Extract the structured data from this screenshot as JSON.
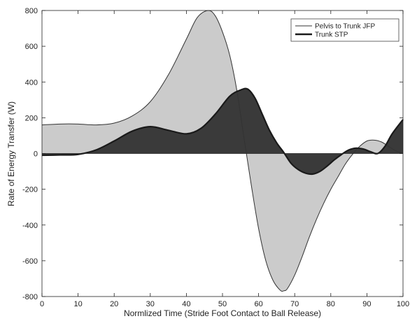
{
  "chart_data": {
    "type": "area",
    "xlabel": "Normlized Time (Stride Foot Contact to Ball Release)",
    "ylabel": "Rate of Energy Transfer (W)",
    "xlim": [
      0,
      100
    ],
    "ylim": [
      -800,
      800
    ],
    "xticks": [
      "0",
      "10",
      "20",
      "30",
      "40",
      "50",
      "60",
      "70",
      "80",
      "90",
      "100"
    ],
    "yticks": [
      "-800",
      "-600",
      "-400",
      "-200",
      "0",
      "200",
      "400",
      "600",
      "800"
    ],
    "grid": false,
    "legend_position": "top-right",
    "series": [
      {
        "name": "Pelvis to Trunk JFP",
        "fill": "#c8c8c8",
        "stroke": "#333333",
        "x": [
          0,
          5,
          10,
          15,
          20,
          25,
          30,
          35,
          40,
          43,
          46,
          48,
          50,
          52,
          54,
          56,
          58,
          60,
          62,
          64,
          66,
          67,
          68,
          70,
          72,
          74,
          76,
          78,
          80,
          82,
          84,
          86,
          88,
          90,
          92,
          94,
          96,
          98,
          100
        ],
        "values": [
          160,
          165,
          165,
          160,
          170,
          210,
          290,
          440,
          640,
          760,
          800,
          770,
          680,
          550,
          350,
          80,
          -180,
          -420,
          -600,
          -710,
          -765,
          -768,
          -755,
          -680,
          -580,
          -470,
          -370,
          -280,
          -200,
          -130,
          -60,
          -5,
          40,
          70,
          75,
          65,
          40,
          15,
          0
        ]
      },
      {
        "name": "Trunk STP",
        "fill": "#3a3a3a",
        "stroke": "#1a1a1a",
        "x": [
          0,
          5,
          10,
          15,
          20,
          25,
          30,
          35,
          40,
          44,
          48,
          52,
          55,
          57,
          59,
          61,
          63,
          65,
          67,
          69,
          71,
          73,
          75,
          77,
          79,
          81,
          83,
          85,
          87,
          89,
          91,
          93,
          95,
          97,
          100
        ],
        "values": [
          -10,
          -8,
          -5,
          20,
          70,
          125,
          150,
          130,
          110,
          140,
          220,
          320,
          355,
          360,
          310,
          220,
          130,
          60,
          5,
          -55,
          -90,
          -110,
          -115,
          -100,
          -70,
          -35,
          -5,
          20,
          30,
          25,
          10,
          0,
          40,
          110,
          190
        ]
      }
    ]
  }
}
